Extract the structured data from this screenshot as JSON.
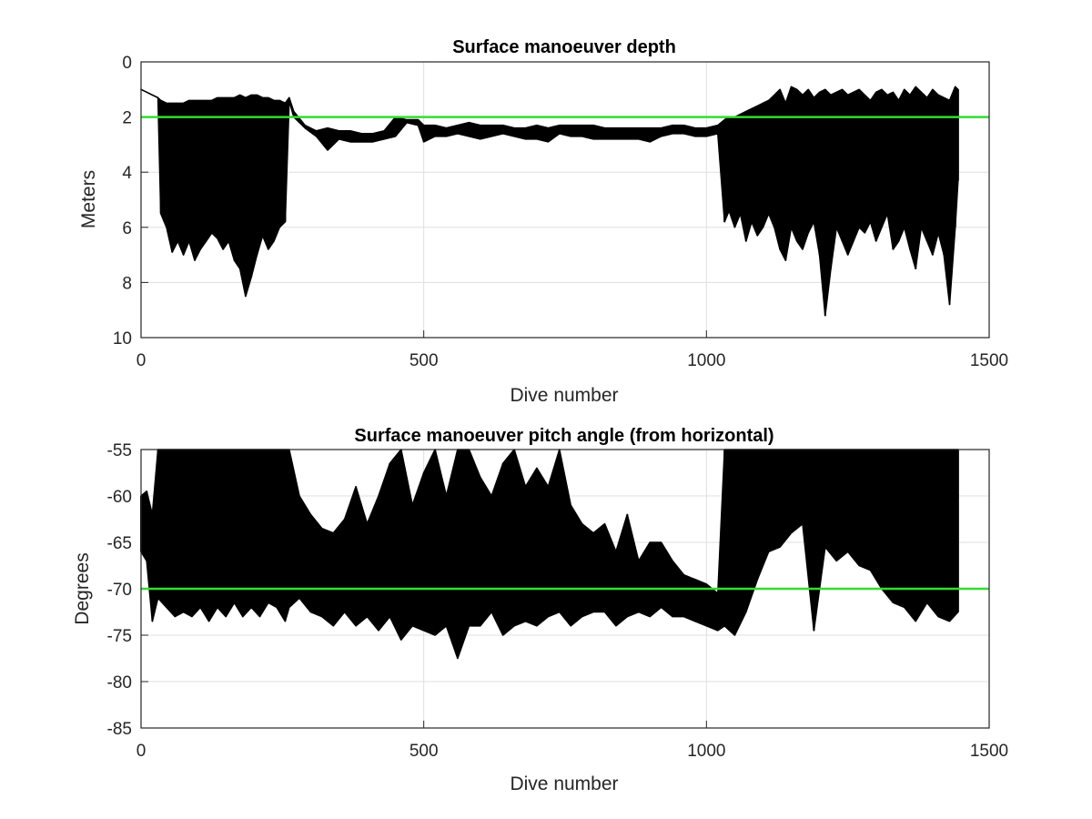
{
  "chart_data": [
    {
      "type": "line",
      "title": "Surface manoeuver depth",
      "xlabel": "Dive number",
      "ylabel": "Meters",
      "xlim": [
        0,
        1500
      ],
      "ylim": [
        0,
        10
      ],
      "y_reversed": true,
      "grid": true,
      "xticks": [
        "0",
        "500",
        "1000",
        "1500"
      ],
      "yticks": [
        "0",
        "2",
        "4",
        "6",
        "8",
        "10"
      ],
      "reference_line": {
        "y": 2,
        "color": "#33dd33"
      },
      "series_color": "#000000",
      "series": [
        {
          "x": [
            0,
            10,
            20,
            30,
            35,
            45,
            55,
            65,
            75,
            85,
            95,
            105,
            115,
            125,
            135,
            145,
            155,
            165,
            175,
            185,
            195,
            205,
            215,
            225,
            235,
            245,
            255,
            262,
            270,
            290,
            310,
            330,
            350,
            370,
            390,
            410,
            430,
            450,
            470,
            490,
            500,
            520,
            540,
            560,
            580,
            600,
            620,
            640,
            660,
            680,
            700,
            720,
            740,
            760,
            780,
            800,
            820,
            840,
            860,
            880,
            900,
            920,
            940,
            960,
            980,
            1000,
            1020,
            1032,
            1040,
            1050,
            1060,
            1070,
            1080,
            1090,
            1100,
            1110,
            1120,
            1130,
            1140,
            1150,
            1160,
            1170,
            1180,
            1190,
            1200,
            1210,
            1220,
            1230,
            1240,
            1250,
            1260,
            1270,
            1280,
            1290,
            1300,
            1310,
            1320,
            1330,
            1340,
            1350,
            1360,
            1370,
            1380,
            1390,
            1400,
            1410,
            1420,
            1430,
            1440,
            1445
          ],
          "y_min": [
            1.0,
            1.1,
            1.2,
            1.3,
            1.4,
            1.5,
            1.5,
            1.5,
            1.5,
            1.4,
            1.4,
            1.4,
            1.4,
            1.4,
            1.3,
            1.3,
            1.3,
            1.3,
            1.2,
            1.3,
            1.2,
            1.2,
            1.3,
            1.3,
            1.4,
            1.4,
            1.5,
            1.3,
            1.8,
            2.3,
            2.5,
            2.4,
            2.5,
            2.5,
            2.6,
            2.6,
            2.5,
            2.0,
            2.1,
            2.1,
            2.3,
            2.3,
            2.4,
            2.3,
            2.2,
            2.3,
            2.3,
            2.3,
            2.4,
            2.4,
            2.3,
            2.4,
            2.3,
            2.3,
            2.3,
            2.3,
            2.4,
            2.4,
            2.4,
            2.4,
            2.4,
            2.4,
            2.3,
            2.3,
            2.4,
            2.4,
            2.3,
            2.1,
            2.0,
            2.0,
            1.9,
            1.8,
            1.7,
            1.6,
            1.5,
            1.4,
            1.2,
            1.0,
            1.5,
            0.9,
            1.0,
            1.2,
            1.0,
            1.3,
            1.1,
            1.0,
            1.2,
            1.1,
            1.0,
            1.2,
            1.1,
            1.0,
            1.2,
            1.4,
            1.1,
            1.0,
            1.2,
            1.1,
            1.4,
            1.0,
            1.2,
            0.9,
            1.1,
            1.3,
            1.0,
            1.2,
            1.3,
            1.4,
            0.9,
            1.0
          ],
          "y_max": [
            1.0,
            1.1,
            1.2,
            1.3,
            5.5,
            6.0,
            6.9,
            6.5,
            7.0,
            6.5,
            7.2,
            6.8,
            6.5,
            6.2,
            6.4,
            6.8,
            6.5,
            7.2,
            7.5,
            8.5,
            7.8,
            7.0,
            6.3,
            6.8,
            6.5,
            6.0,
            5.8,
            1.4,
            2.0,
            2.4,
            2.7,
            3.2,
            2.8,
            2.9,
            2.9,
            2.9,
            2.8,
            2.7,
            2.2,
            2.3,
            2.9,
            2.7,
            2.7,
            2.6,
            2.7,
            2.8,
            2.7,
            2.6,
            2.7,
            2.8,
            2.8,
            2.9,
            2.6,
            2.7,
            2.7,
            2.8,
            2.8,
            2.8,
            2.8,
            2.8,
            2.9,
            2.7,
            2.6,
            2.6,
            2.7,
            2.7,
            2.6,
            5.8,
            5.4,
            6.0,
            5.5,
            6.5,
            5.8,
            6.3,
            6.0,
            5.5,
            6.0,
            6.8,
            7.2,
            6.0,
            6.5,
            6.8,
            6.2,
            5.8,
            7.0,
            9.2,
            7.5,
            6.0,
            6.5,
            7.0,
            6.5,
            6.0,
            6.2,
            5.8,
            6.5,
            6.0,
            5.5,
            6.8,
            6.5,
            6.0,
            6.8,
            7.5,
            6.0,
            6.5,
            7.0,
            6.2,
            7.0,
            8.8,
            6.0,
            4.3
          ]
        }
      ]
    },
    {
      "type": "line",
      "title": "Surface manoeuver pitch angle (from horizontal)",
      "xlabel": "Dive number",
      "ylabel": "Degrees",
      "xlim": [
        0,
        1500
      ],
      "ylim": [
        -85,
        -55
      ],
      "grid": true,
      "xticks": [
        "0",
        "500",
        "1000",
        "1500"
      ],
      "yticks": [
        "-55",
        "-60",
        "-65",
        "-70",
        "-75",
        "-80",
        "-85"
      ],
      "reference_line": {
        "y": -70,
        "color": "#33dd33"
      },
      "series_color": "#000000",
      "series": [
        {
          "x": [
            0,
            10,
            20,
            30,
            45,
            60,
            75,
            90,
            105,
            120,
            135,
            150,
            165,
            180,
            195,
            210,
            225,
            240,
            255,
            262,
            280,
            300,
            320,
            340,
            360,
            380,
            400,
            420,
            440,
            460,
            480,
            500,
            520,
            540,
            560,
            580,
            600,
            620,
            640,
            660,
            680,
            700,
            720,
            740,
            760,
            780,
            800,
            820,
            840,
            860,
            880,
            900,
            920,
            940,
            960,
            980,
            1000,
            1020,
            1032,
            1050,
            1070,
            1090,
            1110,
            1130,
            1150,
            1170,
            1190,
            1210,
            1230,
            1250,
            1270,
            1290,
            1310,
            1330,
            1350,
            1370,
            1390,
            1410,
            1430,
            1445
          ],
          "y_min": [
            -60.0,
            -59.5,
            -62.0,
            -55.0,
            -55.0,
            -55.0,
            -55.0,
            -55.0,
            -55.0,
            -55.0,
            -55.0,
            -55.0,
            -55.0,
            -55.0,
            -55.0,
            -55.0,
            -55.0,
            -55.0,
            -55.0,
            -55.0,
            -60.0,
            -62.0,
            -63.5,
            -64.0,
            -62.5,
            -59.0,
            -63.0,
            -60.0,
            -56.5,
            -55.0,
            -61.0,
            -57.5,
            -55.0,
            -60.0,
            -55.0,
            -55.0,
            -58.0,
            -60.0,
            -56.5,
            -55.0,
            -59.0,
            -57.0,
            -59.0,
            -55.0,
            -61.0,
            -63.0,
            -64.0,
            -63.0,
            -66.0,
            -62.0,
            -67.0,
            -65.0,
            -65.0,
            -67.0,
            -68.5,
            -69.0,
            -69.5,
            -70.5,
            -55.0,
            -55.0,
            -55.0,
            -55.0,
            -55.0,
            -55.0,
            -55.0,
            -55.0,
            -55.0,
            -55.0,
            -55.0,
            -55.0,
            -55.0,
            -55.0,
            -55.0,
            -55.0,
            -55.0,
            -55.0,
            -55.0,
            -55.0,
            -55.0,
            -55.0
          ],
          "y_max": [
            -66.0,
            -67.0,
            -73.5,
            -71.0,
            -72.0,
            -73.0,
            -72.5,
            -73.0,
            -72.0,
            -73.5,
            -72.0,
            -73.0,
            -71.5,
            -73.0,
            -72.0,
            -73.0,
            -71.5,
            -72.0,
            -73.5,
            -72.0,
            -71.0,
            -72.5,
            -73.0,
            -74.0,
            -72.5,
            -74.0,
            -73.0,
            -74.5,
            -73.0,
            -75.5,
            -74.0,
            -74.5,
            -75.0,
            -74.0,
            -77.5,
            -74.0,
            -74.0,
            -72.5,
            -75.0,
            -74.0,
            -73.5,
            -74.0,
            -73.0,
            -72.5,
            -74.0,
            -73.0,
            -72.5,
            -72.5,
            -74.0,
            -73.0,
            -72.5,
            -73.0,
            -72.0,
            -73.0,
            -73.0,
            -73.5,
            -74.0,
            -74.5,
            -74.0,
            -75.0,
            -72.5,
            -69.0,
            -66.0,
            -65.5,
            -64.0,
            -63.0,
            -74.5,
            -65.5,
            -67.0,
            -66.0,
            -67.5,
            -68.0,
            -70.0,
            -71.5,
            -72.0,
            -73.5,
            -71.5,
            -73.0,
            -73.5,
            -72.5
          ]
        }
      ]
    }
  ]
}
